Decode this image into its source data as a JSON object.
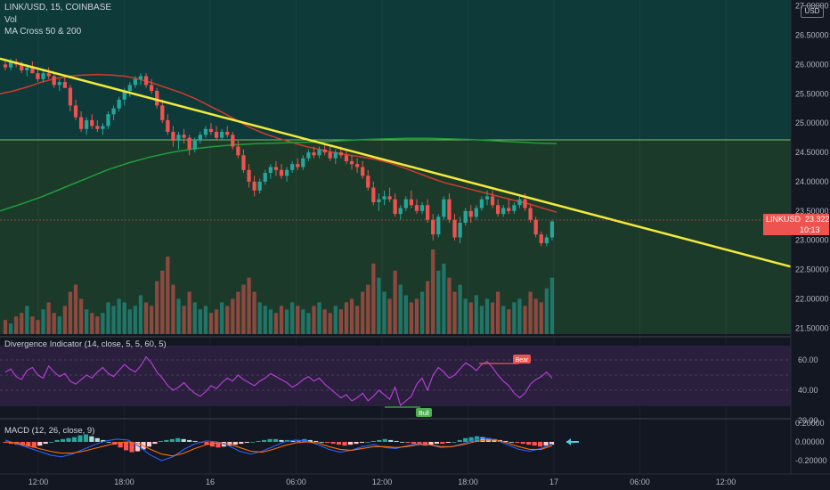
{
  "header": {
    "symbol_line": "LINK/USD, 15, COINBASE",
    "vol_label": "Vol",
    "ma_label": "MA Cross 50 & 200"
  },
  "price_axis": {
    "currency_badge": "USD",
    "ticks": [
      "27.00000",
      "26.50000",
      "26.00000",
      "25.50000",
      "25.00000",
      "24.50000",
      "24.00000",
      "23.50000",
      "23.00000",
      "22.50000",
      "22.00000",
      "21.50000"
    ],
    "last_symbol": "LINKUSD",
    "last_price": "23.32230",
    "countdown": "10:13"
  },
  "rsi_pane": {
    "legend": "Divergence Indicator (14, close, 5, 5, 60, 5)",
    "ticks": [
      "60.00",
      "40.00",
      "20.00"
    ],
    "bear_label": "Bear",
    "bull_label": "Bull"
  },
  "macd_pane": {
    "legend": "MACD (12, 26, close, 9)",
    "ticks": [
      "0.20000",
      "0.00000",
      "-0.20000"
    ]
  },
  "time_axis": {
    "labels": [
      "12:00",
      "18:00",
      "16",
      "06:00",
      "12:00",
      "18:00",
      "17",
      "06:00",
      "12:00"
    ]
  },
  "colors": {
    "background": "#131722",
    "up": "#26a69a",
    "down": "#ef5350",
    "trendline": "#f2ea3c",
    "ma50": "#d13b2c",
    "ma200": "#1f9e3a",
    "rsi": "#b13fd1",
    "macd_line": "#2962ff",
    "signal_line": "#ff6d00",
    "arrow": "#4dd0e1"
  },
  "chart_data": [
    {
      "type": "candlestick",
      "title": "LINK/USD, 15, COINBASE",
      "ylim": [
        21.4,
        27.1
      ],
      "ohlc": [
        [
          26.0,
          26.05,
          25.9,
          25.95
        ],
        [
          25.95,
          26.1,
          25.9,
          26.05
        ],
        [
          26.05,
          26.1,
          25.95,
          26.0
        ],
        [
          26.0,
          26.05,
          25.85,
          25.9
        ],
        [
          25.9,
          26.0,
          25.8,
          25.95
        ],
        [
          25.95,
          26.05,
          25.85,
          25.85
        ],
        [
          25.85,
          25.95,
          25.7,
          25.75
        ],
        [
          25.75,
          25.9,
          25.7,
          25.85
        ],
        [
          25.85,
          25.95,
          25.75,
          25.8
        ],
        [
          25.8,
          25.85,
          25.6,
          25.65
        ],
        [
          25.65,
          25.75,
          25.55,
          25.7
        ],
        [
          25.7,
          25.8,
          25.6,
          25.6
        ],
        [
          25.6,
          25.65,
          25.2,
          25.3
        ],
        [
          25.3,
          25.4,
          25.05,
          25.1
        ],
        [
          25.1,
          25.2,
          24.85,
          24.9
        ],
        [
          24.9,
          25.1,
          24.8,
          25.05
        ],
        [
          25.05,
          25.15,
          24.9,
          24.95
        ],
        [
          24.95,
          25.05,
          24.85,
          24.9
        ],
        [
          24.9,
          25.0,
          24.8,
          24.95
        ],
        [
          24.95,
          25.2,
          24.9,
          25.15
        ],
        [
          25.15,
          25.3,
          25.05,
          25.25
        ],
        [
          25.25,
          25.45,
          25.2,
          25.4
        ],
        [
          25.4,
          25.6,
          25.3,
          25.55
        ],
        [
          25.55,
          25.7,
          25.45,
          25.65
        ],
        [
          25.65,
          25.8,
          25.6,
          25.75
        ],
        [
          25.75,
          25.85,
          25.65,
          25.8
        ],
        [
          25.8,
          25.85,
          25.6,
          25.65
        ],
        [
          25.65,
          25.75,
          25.5,
          25.55
        ],
        [
          25.55,
          25.6,
          25.25,
          25.3
        ],
        [
          25.3,
          25.4,
          25.0,
          25.05
        ],
        [
          25.05,
          25.15,
          24.8,
          24.85
        ],
        [
          24.85,
          24.95,
          24.6,
          24.7
        ],
        [
          24.7,
          24.85,
          24.55,
          24.8
        ],
        [
          24.8,
          24.9,
          24.65,
          24.75
        ],
        [
          24.75,
          24.8,
          24.45,
          24.55
        ],
        [
          24.55,
          24.75,
          24.5,
          24.7
        ],
        [
          24.7,
          24.85,
          24.65,
          24.8
        ],
        [
          24.8,
          24.95,
          24.75,
          24.9
        ],
        [
          24.9,
          25.0,
          24.8,
          24.85
        ],
        [
          24.85,
          24.95,
          24.7,
          24.75
        ],
        [
          24.75,
          24.9,
          24.7,
          24.85
        ],
        [
          24.85,
          24.95,
          24.75,
          24.8
        ],
        [
          24.8,
          24.85,
          24.55,
          24.6
        ],
        [
          24.6,
          24.7,
          24.4,
          24.45
        ],
        [
          24.45,
          24.55,
          24.15,
          24.2
        ],
        [
          24.2,
          24.3,
          23.9,
          24.0
        ],
        [
          24.0,
          24.1,
          23.75,
          23.85
        ],
        [
          23.85,
          24.05,
          23.8,
          24.0
        ],
        [
          24.0,
          24.2,
          23.95,
          24.15
        ],
        [
          24.15,
          24.3,
          24.05,
          24.25
        ],
        [
          24.25,
          24.35,
          24.1,
          24.2
        ],
        [
          24.2,
          24.3,
          24.05,
          24.1
        ],
        [
          24.1,
          24.25,
          24.0,
          24.2
        ],
        [
          24.2,
          24.35,
          24.15,
          24.3
        ],
        [
          24.3,
          24.4,
          24.2,
          24.25
        ],
        [
          24.25,
          24.45,
          24.2,
          24.4
        ],
        [
          24.4,
          24.55,
          24.35,
          24.5
        ],
        [
          24.5,
          24.6,
          24.4,
          24.45
        ],
        [
          24.45,
          24.6,
          24.4,
          24.55
        ],
        [
          24.55,
          24.65,
          24.45,
          24.5
        ],
        [
          24.5,
          24.6,
          24.35,
          24.4
        ],
        [
          24.4,
          24.55,
          24.3,
          24.5
        ],
        [
          24.5,
          24.6,
          24.4,
          24.45
        ],
        [
          24.45,
          24.55,
          24.3,
          24.35
        ],
        [
          24.35,
          24.45,
          24.2,
          24.3
        ],
        [
          24.3,
          24.4,
          24.15,
          24.25
        ],
        [
          24.25,
          24.35,
          24.05,
          24.1
        ],
        [
          24.1,
          24.2,
          23.85,
          23.9
        ],
        [
          23.9,
          24.0,
          23.6,
          23.65
        ],
        [
          23.65,
          23.8,
          23.5,
          23.7
        ],
        [
          23.7,
          23.85,
          23.6,
          23.75
        ],
        [
          23.75,
          23.9,
          23.65,
          23.7
        ],
        [
          23.7,
          23.8,
          23.4,
          23.45
        ],
        [
          23.45,
          23.6,
          23.35,
          23.55
        ],
        [
          23.55,
          23.75,
          23.5,
          23.7
        ],
        [
          23.7,
          23.85,
          23.55,
          23.6
        ],
        [
          23.6,
          23.7,
          23.45,
          23.5
        ],
        [
          23.5,
          23.65,
          23.45,
          23.6
        ],
        [
          23.6,
          23.7,
          23.3,
          23.35
        ],
        [
          23.35,
          23.45,
          23.0,
          23.1
        ],
        [
          23.1,
          23.45,
          23.05,
          23.4
        ],
        [
          23.4,
          23.75,
          23.35,
          23.7
        ],
        [
          23.7,
          23.8,
          23.3,
          23.35
        ],
        [
          23.35,
          23.45,
          23.0,
          23.05
        ],
        [
          23.05,
          23.4,
          22.95,
          23.3
        ],
        [
          23.3,
          23.55,
          23.25,
          23.5
        ],
        [
          23.5,
          23.6,
          23.3,
          23.4
        ],
        [
          23.4,
          23.6,
          23.35,
          23.55
        ],
        [
          23.55,
          23.75,
          23.5,
          23.7
        ],
        [
          23.7,
          23.85,
          23.6,
          23.75
        ],
        [
          23.75,
          23.85,
          23.55,
          23.6
        ],
        [
          23.6,
          23.7,
          23.4,
          23.45
        ],
        [
          23.45,
          23.6,
          23.4,
          23.55
        ],
        [
          23.55,
          23.7,
          23.45,
          23.5
        ],
        [
          23.5,
          23.65,
          23.45,
          23.6
        ],
        [
          23.6,
          23.75,
          23.55,
          23.7
        ],
        [
          23.7,
          23.8,
          23.5,
          23.55
        ],
        [
          23.55,
          23.6,
          23.3,
          23.35
        ],
        [
          23.35,
          23.4,
          23.05,
          23.1
        ],
        [
          23.1,
          23.15,
          22.9,
          22.95
        ],
        [
          22.95,
          23.1,
          22.9,
          23.05
        ],
        [
          23.05,
          23.35,
          23.0,
          23.32
        ]
      ],
      "volume": [
        4,
        3,
        5,
        6,
        8,
        5,
        4,
        7,
        9,
        6,
        5,
        8,
        12,
        14,
        10,
        7,
        6,
        5,
        6,
        9,
        8,
        10,
        9,
        7,
        8,
        11,
        9,
        8,
        15,
        18,
        22,
        14,
        10,
        8,
        12,
        9,
        7,
        8,
        6,
        7,
        9,
        8,
        10,
        12,
        14,
        16,
        12,
        9,
        8,
        7,
        6,
        8,
        7,
        9,
        8,
        7,
        6,
        8,
        9,
        7,
        6,
        8,
        7,
        9,
        10,
        8,
        12,
        14,
        20,
        16,
        12,
        10,
        18,
        14,
        11,
        9,
        10,
        12,
        15,
        24,
        18,
        20,
        16,
        12,
        14,
        10,
        9,
        11,
        8,
        10,
        9,
        12,
        8,
        7,
        9,
        10,
        8,
        12,
        10,
        9,
        13,
        16
      ],
      "ma50": [
        25.5,
        25.55,
        25.62,
        25.7,
        25.76,
        25.8,
        25.82,
        25.83,
        25.82,
        25.8,
        25.75,
        25.68,
        25.6,
        25.52,
        25.42,
        25.3,
        25.18,
        25.05,
        24.92,
        24.82,
        24.74,
        24.67,
        24.6,
        24.55,
        24.5,
        24.46,
        24.42,
        24.38,
        24.32,
        24.24,
        24.15,
        24.06,
        23.98,
        23.92,
        23.86,
        23.8,
        23.74,
        23.68,
        23.62,
        23.55,
        23.48
      ],
      "ma200": [
        23.5,
        23.62,
        23.75,
        23.9,
        24.05,
        24.2,
        24.32,
        24.42,
        24.5,
        24.56,
        24.6,
        24.63,
        24.65,
        24.66,
        24.67,
        24.68,
        24.7,
        24.72,
        24.73,
        24.74,
        24.74,
        24.73,
        24.72,
        24.7,
        24.68,
        24.66,
        24.65
      ],
      "trendline": [
        [
          0,
          26.1
        ],
        [
          888,
          22.55
        ]
      ],
      "support_line": 24.65,
      "last_price": 23.3223
    },
    {
      "type": "line",
      "title": "Divergence Indicator (14, close, 5, 5, 60, 5)",
      "ylim": [
        20,
        70
      ],
      "values": [
        52,
        54,
        49,
        47,
        53,
        55,
        50,
        48,
        56,
        52,
        49,
        51,
        46,
        44,
        47,
        50,
        48,
        52,
        55,
        51,
        49,
        53,
        57,
        54,
        52,
        56,
        62,
        58,
        52,
        48,
        43,
        40,
        42,
        45,
        41,
        38,
        36,
        39,
        43,
        41,
        45,
        48,
        46,
        50,
        47,
        45,
        43,
        46,
        48,
        51,
        49,
        47,
        45,
        42,
        44,
        47,
        49,
        46,
        48,
        44,
        41,
        38,
        35,
        37,
        33,
        35,
        38,
        33,
        36,
        40,
        37,
        34,
        42,
        30,
        33,
        36,
        44,
        48,
        40,
        50,
        55,
        52,
        48,
        50,
        54,
        58,
        56,
        53,
        57,
        59,
        55,
        50,
        46,
        43,
        38,
        35,
        38,
        44,
        47,
        49,
        52,
        48
      ],
      "levels": [
        60,
        50,
        40
      ],
      "bear_label": "Bear",
      "bull_label": "Bull"
    },
    {
      "type": "bar",
      "title": "MACD (12, 26, close, 9)",
      "ylim": [
        -0.28,
        0.22
      ],
      "histogram": [
        -0.01,
        -0.02,
        -0.03,
        -0.04,
        -0.05,
        -0.06,
        -0.04,
        -0.02,
        0.0,
        0.02,
        0.03,
        0.04,
        0.05,
        0.07,
        0.08,
        0.06,
        0.04,
        0.02,
        0.0,
        -0.03,
        -0.06,
        -0.09,
        -0.11,
        -0.1,
        -0.08,
        -0.05,
        -0.02,
        0.01,
        0.02,
        0.03,
        0.04,
        0.03,
        0.02,
        0.01,
        -0.01,
        -0.03,
        -0.05,
        -0.06,
        -0.05,
        -0.04,
        -0.03,
        -0.02,
        -0.01,
        0.0,
        0.01,
        0.02,
        0.03,
        0.03,
        0.02,
        0.02,
        0.01,
        0.02,
        0.03,
        0.02,
        0.01,
        0.0,
        -0.01,
        -0.02,
        -0.03,
        -0.04,
        -0.03,
        -0.02,
        -0.01,
        0.0,
        0.01,
        0.02,
        0.03,
        0.02,
        0.01,
        0.0,
        -0.01,
        -0.02,
        -0.03,
        -0.04,
        -0.03,
        -0.02,
        -0.02,
        -0.01,
        0.0,
        0.02,
        0.04,
        0.05,
        0.06,
        0.05,
        0.04,
        0.03,
        0.02,
        0.01,
        0.0,
        -0.01,
        -0.02,
        -0.03,
        -0.04,
        -0.05,
        -0.04,
        -0.03
      ],
      "macd": [
        0.02,
        -0.02,
        -0.06,
        -0.1,
        -0.14,
        -0.16,
        -0.13,
        -0.08,
        -0.03,
        0.01,
        0.03,
        0.02,
        -0.05,
        -0.14,
        -0.2,
        -0.16,
        -0.08,
        -0.02,
        0.01,
        0.0,
        -0.04,
        -0.1,
        -0.13,
        -0.1,
        -0.05,
        0.0,
        0.02,
        0.01,
        -0.03,
        -0.08,
        -0.11,
        -0.09,
        -0.05,
        -0.03,
        -0.06,
        -0.07,
        -0.04,
        -0.02,
        -0.03,
        -0.06,
        -0.05,
        -0.02,
        0.02,
        0.04,
        0.02,
        -0.03,
        -0.08,
        -0.1,
        -0.07,
        -0.02
      ],
      "signal": [
        0.0,
        -0.01,
        -0.04,
        -0.07,
        -0.1,
        -0.12,
        -0.12,
        -0.1,
        -0.07,
        -0.04,
        -0.01,
        0.0,
        -0.02,
        -0.08,
        -0.13,
        -0.15,
        -0.12,
        -0.07,
        -0.03,
        -0.01,
        -0.02,
        -0.06,
        -0.1,
        -0.11,
        -0.08,
        -0.04,
        -0.01,
        0.0,
        -0.01,
        -0.05,
        -0.08,
        -0.09,
        -0.07,
        -0.05,
        -0.05,
        -0.06,
        -0.05,
        -0.03,
        -0.03,
        -0.05,
        -0.05,
        -0.03,
        0.0,
        0.02,
        0.02,
        -0.01,
        -0.05,
        -0.08,
        -0.08,
        -0.04
      ]
    }
  ]
}
